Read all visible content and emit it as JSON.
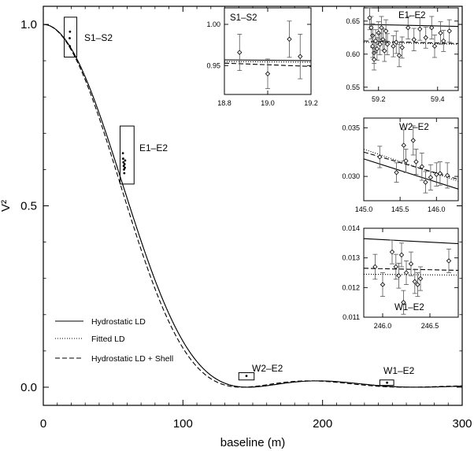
{
  "chart_data": {
    "type": "line",
    "xlabel": "baseline (m)",
    "ylabel": "V²",
    "xlim": [
      0,
      300
    ],
    "ylim": [
      -0.05,
      1.05
    ],
    "xticks": [
      "0",
      "100",
      "200",
      "300"
    ],
    "yticks": [
      "0.0",
      "0.5",
      "1.0"
    ],
    "series": [
      {
        "name": "Hydrostatic LD",
        "style": "solid",
        "color": "#000000",
        "diameter_factor": 1.0
      },
      {
        "name": "Fitted LD",
        "style": "dotted",
        "color": "#000000",
        "diameter_factor": 1.0
      },
      {
        "name": "Hydrostatic  LD + Shell",
        "style": "dashed",
        "color": "#000000",
        "diameter_factor": 1.03
      }
    ],
    "main_points": [
      {
        "x": 18.9,
        "y": 0.962
      },
      {
        "x": 19.0,
        "y": 0.94
      },
      {
        "x": 19.1,
        "y": 0.98
      },
      {
        "x": 57.0,
        "y": 0.645
      },
      {
        "x": 57.2,
        "y": 0.63
      },
      {
        "x": 57.4,
        "y": 0.62
      },
      {
        "x": 57.6,
        "y": 0.61
      },
      {
        "x": 57.8,
        "y": 0.6
      },
      {
        "x": 58.0,
        "y": 0.59
      },
      {
        "x": 58.2,
        "y": 0.615
      },
      {
        "x": 58.4,
        "y": 0.605
      },
      {
        "x": 58.6,
        "y": 0.625
      },
      {
        "x": 145.5,
        "y": 0.031
      },
      {
        "x": 246.2,
        "y": 0.0125
      }
    ],
    "boxes": [
      {
        "label": "S1–S2",
        "xlim": [
          15,
          24
        ],
        "ylim": [
          0.91,
          1.02
        ]
      },
      {
        "label": "E1–E2",
        "xlim": [
          55,
          65
        ],
        "ylim": [
          0.56,
          0.72
        ]
      },
      {
        "label": "W2–E2",
        "xlim": [
          140,
          151
        ],
        "ylim": [
          0.02,
          0.04
        ]
      },
      {
        "label": "W1–E2",
        "xlim": [
          241,
          251
        ],
        "ylim": [
          0.005,
          0.02
        ]
      }
    ],
    "insets": [
      {
        "label": "S1–S2",
        "xlim": [
          18.8,
          19.2
        ],
        "ylim": [
          0.915,
          1.02
        ],
        "xticks": [
          18.8,
          19.0,
          19.2
        ],
        "xtick_labels": [
          "18.8",
          "19.0",
          "19.2"
        ],
        "yticks": [
          0.95,
          1.0
        ],
        "ytick_labels": [
          "0.95",
          "1.00"
        ],
        "lines": [
          {
            "style": "solid",
            "x": [
              18.8,
              19.2
            ],
            "y": [
              0.957,
              0.956
            ]
          },
          {
            "style": "dotted",
            "x": [
              18.8,
              19.2
            ],
            "y": [
              0.955,
              0.954
            ]
          },
          {
            "style": "dashed",
            "x": [
              18.8,
              19.2
            ],
            "y": [
              0.953,
              0.949
            ]
          }
        ],
        "points": [
          {
            "x": 18.87,
            "y": 0.966,
            "err": 0.022
          },
          {
            "x": 19.0,
            "y": 0.94,
            "err": 0.018
          },
          {
            "x": 19.1,
            "y": 0.982,
            "err": 0.022
          },
          {
            "x": 19.15,
            "y": 0.961,
            "err": 0.027
          }
        ]
      },
      {
        "label": "E1–E2",
        "xlim": [
          59.15,
          59.47
        ],
        "ylim": [
          0.545,
          0.67
        ],
        "xticks": [
          59.2,
          59.4
        ],
        "xtick_labels": [
          "59.2",
          "59.4"
        ],
        "yticks": [
          0.55,
          0.6,
          0.65
        ],
        "ytick_labels": [
          "0.55",
          "0.60",
          "0.65"
        ],
        "lines": [
          {
            "style": "solid",
            "x": [
              59.15,
              59.47
            ],
            "y": [
              0.645,
              0.642
            ]
          },
          {
            "style": "dotted",
            "x": [
              59.15,
              59.47
            ],
            "y": [
              0.618,
              0.615
            ]
          },
          {
            "style": "dashed",
            "x": [
              59.15,
              59.47
            ],
            "y": [
              0.62,
              0.616
            ]
          }
        ],
        "points": [
          {
            "x": 59.17,
            "y": 0.655,
            "err": 0.018
          },
          {
            "x": 59.175,
            "y": 0.64,
            "err": 0.017
          },
          {
            "x": 59.18,
            "y": 0.628,
            "err": 0.018
          },
          {
            "x": 59.18,
            "y": 0.612,
            "err": 0.017
          },
          {
            "x": 59.185,
            "y": 0.602,
            "err": 0.016
          },
          {
            "x": 59.185,
            "y": 0.592,
            "err": 0.016
          },
          {
            "x": 59.19,
            "y": 0.62,
            "err": 0.017
          },
          {
            "x": 59.195,
            "y": 0.608,
            "err": 0.017
          },
          {
            "x": 59.2,
            "y": 0.632,
            "err": 0.017
          },
          {
            "x": 59.205,
            "y": 0.615,
            "err": 0.016
          },
          {
            "x": 59.21,
            "y": 0.64,
            "err": 0.017
          },
          {
            "x": 59.215,
            "y": 0.622,
            "err": 0.016
          },
          {
            "x": 59.22,
            "y": 0.605,
            "err": 0.016
          },
          {
            "x": 59.225,
            "y": 0.635,
            "err": 0.017
          },
          {
            "x": 59.23,
            "y": 0.615,
            "err": 0.016
          },
          {
            "x": 59.25,
            "y": 0.612,
            "err": 0.016
          },
          {
            "x": 59.26,
            "y": 0.618,
            "err": 0.017
          },
          {
            "x": 59.27,
            "y": 0.598,
            "err": 0.017
          },
          {
            "x": 59.28,
            "y": 0.61,
            "err": 0.016
          },
          {
            "x": 59.3,
            "y": 0.64,
            "err": 0.017
          },
          {
            "x": 59.32,
            "y": 0.622,
            "err": 0.017
          },
          {
            "x": 59.34,
            "y": 0.638,
            "err": 0.017
          },
          {
            "x": 59.36,
            "y": 0.625,
            "err": 0.016
          },
          {
            "x": 59.38,
            "y": 0.64,
            "err": 0.017
          },
          {
            "x": 59.39,
            "y": 0.612,
            "err": 0.017
          },
          {
            "x": 59.41,
            "y": 0.632,
            "err": 0.017
          },
          {
            "x": 59.42,
            "y": 0.62,
            "err": 0.016
          },
          {
            "x": 59.44,
            "y": 0.635,
            "err": 0.017
          }
        ]
      },
      {
        "label": "W2–E2",
        "xlim": [
          145.0,
          146.3
        ],
        "ylim": [
          0.0275,
          0.036
        ],
        "xticks": [
          145.0,
          145.5,
          146.0
        ],
        "xtick_labels": [
          "145.0",
          "145.5",
          "146.0"
        ],
        "yticks": [
          0.03,
          0.035
        ],
        "ytick_labels": [
          "0.030",
          "0.035"
        ],
        "lines": [
          {
            "style": "solid",
            "x": [
              145.0,
              146.3
            ],
            "y": [
              0.0318,
              0.0287
            ]
          },
          {
            "style": "dotted",
            "x": [
              145.0,
              146.3
            ],
            "y": [
              0.0328,
              0.0295
            ]
          },
          {
            "style": "dashed",
            "x": [
              145.0,
              146.3
            ],
            "y": [
              0.0325,
              0.0297
            ]
          }
        ],
        "points": [
          {
            "x": 145.22,
            "y": 0.032,
            "err": 0.0011
          },
          {
            "x": 145.45,
            "y": 0.0304,
            "err": 0.001
          },
          {
            "x": 145.55,
            "y": 0.0332,
            "err": 0.0016
          },
          {
            "x": 145.58,
            "y": 0.0316,
            "err": 0.0012
          },
          {
            "x": 145.68,
            "y": 0.0337,
            "err": 0.0015
          },
          {
            "x": 145.72,
            "y": 0.0315,
            "err": 0.0013
          },
          {
            "x": 145.8,
            "y": 0.031,
            "err": 0.0014
          },
          {
            "x": 145.85,
            "y": 0.0294,
            "err": 0.0011
          },
          {
            "x": 145.92,
            "y": 0.0299,
            "err": 0.0013
          },
          {
            "x": 146.0,
            "y": 0.0302,
            "err": 0.0012
          },
          {
            "x": 146.05,
            "y": 0.0303,
            "err": 0.0012
          },
          {
            "x": 146.15,
            "y": 0.0301,
            "err": 0.0013
          }
        ]
      },
      {
        "label": "W1–E2",
        "xlim": [
          245.8,
          246.8
        ],
        "ylim": [
          0.011,
          0.014
        ],
        "xticks": [
          246.0,
          246.5
        ],
        "xtick_labels": [
          "246.0",
          "246.5"
        ],
        "yticks": [
          0.011,
          0.012,
          0.013,
          0.014
        ],
        "ytick_labels": [
          "0.011",
          "0.012",
          "0.013",
          "0.014"
        ],
        "lines": [
          {
            "style": "solid",
            "x": [
              245.8,
              246.8
            ],
            "y": [
              0.01365,
              0.01348
            ]
          },
          {
            "style": "dotted",
            "x": [
              245.8,
              246.8
            ],
            "y": [
              0.01245,
              0.01242
            ]
          },
          {
            "style": "dashed",
            "x": [
              245.8,
              246.8
            ],
            "y": [
              0.01265,
              0.01258
            ]
          }
        ],
        "points": [
          {
            "x": 245.92,
            "y": 0.0127,
            "err": 0.00042
          },
          {
            "x": 246.0,
            "y": 0.0121,
            "err": 0.0004
          },
          {
            "x": 246.1,
            "y": 0.0132,
            "err": 0.0004
          },
          {
            "x": 246.14,
            "y": 0.0127,
            "err": 0.00042
          },
          {
            "x": 246.17,
            "y": 0.0124,
            "err": 0.00042
          },
          {
            "x": 246.2,
            "y": 0.0131,
            "err": 0.0004
          },
          {
            "x": 246.22,
            "y": 0.0115,
            "err": 0.0004
          },
          {
            "x": 246.25,
            "y": 0.0125,
            "err": 0.0004
          },
          {
            "x": 246.3,
            "y": 0.0128,
            "err": 0.0004
          },
          {
            "x": 246.34,
            "y": 0.0122,
            "err": 0.0004
          },
          {
            "x": 246.37,
            "y": 0.0121,
            "err": 0.0004
          },
          {
            "x": 246.4,
            "y": 0.0123,
            "err": 0.0004
          },
          {
            "x": 246.7,
            "y": 0.0129,
            "err": 0.0004
          }
        ]
      }
    ]
  }
}
